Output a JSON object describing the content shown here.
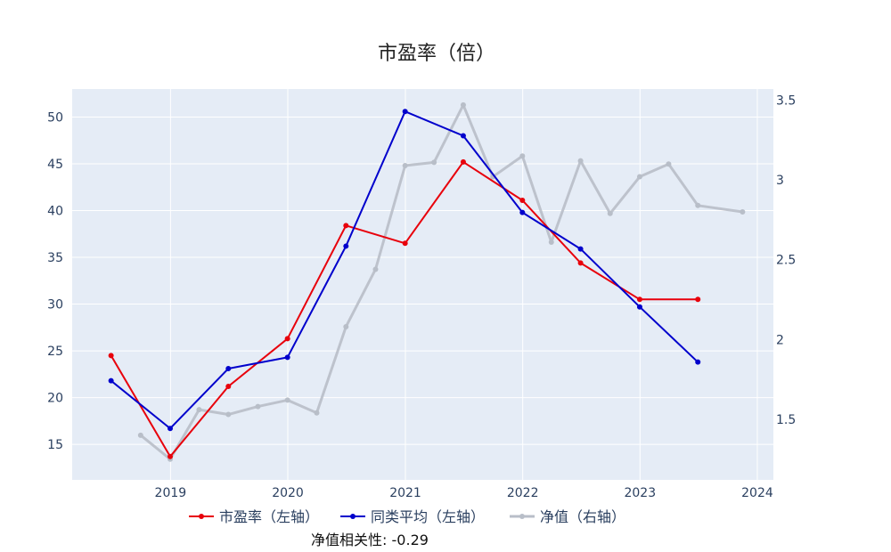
{
  "chart_data": {
    "type": "line",
    "title": "市盈率（倍）",
    "annotation": "净值相关性: -0.29",
    "x_axis": {
      "type": "date",
      "range": [
        "2018-03-01",
        "2024-02-20"
      ],
      "ticks": [
        "2019",
        "2020",
        "2021",
        "2022",
        "2023",
        "2024"
      ]
    },
    "y_left": {
      "range": [
        11.2,
        53.0
      ],
      "ticks": [
        15,
        20,
        25,
        30,
        35,
        40,
        45,
        50
      ]
    },
    "y_right": {
      "range": [
        1.12,
        3.57
      ],
      "ticks": [
        1.5,
        2,
        2.5,
        3,
        3.5
      ],
      "tick_labels": [
        "1.5",
        "2",
        "2.5",
        "3",
        "3.5"
      ]
    },
    "grid": true,
    "legend_position": "bottom-center",
    "series": [
      {
        "name": "市盈率（左轴）",
        "axis": "left",
        "color": "#e8000b",
        "x": [
          "2018-06-30",
          "2018-12-31",
          "2019-06-30",
          "2019-12-31",
          "2020-06-30",
          "2020-12-31",
          "2021-06-30",
          "2021-12-31",
          "2022-06-30",
          "2022-12-31",
          "2023-06-30"
        ],
        "y": [
          24.5,
          13.7,
          21.2,
          26.3,
          38.4,
          36.5,
          45.2,
          41.1,
          34.4,
          30.5,
          30.5
        ]
      },
      {
        "name": "同类平均（左轴）",
        "axis": "left",
        "color": "#0000cc",
        "x": [
          "2018-06-30",
          "2018-12-31",
          "2019-06-30",
          "2019-12-31",
          "2020-06-30",
          "2020-12-31",
          "2021-06-30",
          "2021-12-31",
          "2022-06-30",
          "2022-12-31",
          "2023-06-30"
        ],
        "y": [
          21.8,
          16.7,
          23.1,
          24.3,
          36.2,
          50.6,
          48.0,
          39.8,
          35.9,
          29.7,
          23.8
        ]
      },
      {
        "name": "净值（右轴）",
        "axis": "right",
        "color": "#b8bec8",
        "x": [
          "2018-09-30",
          "2018-12-31",
          "2019-03-31",
          "2019-06-30",
          "2019-09-30",
          "2019-12-31",
          "2020-03-31",
          "2020-06-30",
          "2020-09-30",
          "2020-12-31",
          "2021-03-31",
          "2021-06-30",
          "2021-09-30",
          "2021-12-31",
          "2022-03-31",
          "2022-06-30",
          "2022-09-30",
          "2022-12-31",
          "2023-03-31",
          "2023-06-30",
          "2023-11-16"
        ],
        "y": [
          1.4,
          1.25,
          1.56,
          1.53,
          1.58,
          1.62,
          1.54,
          2.08,
          2.44,
          3.09,
          3.11,
          3.47,
          3.02,
          3.15,
          2.61,
          3.12,
          2.79,
          3.02,
          3.1,
          2.84,
          2.8
        ]
      }
    ]
  }
}
